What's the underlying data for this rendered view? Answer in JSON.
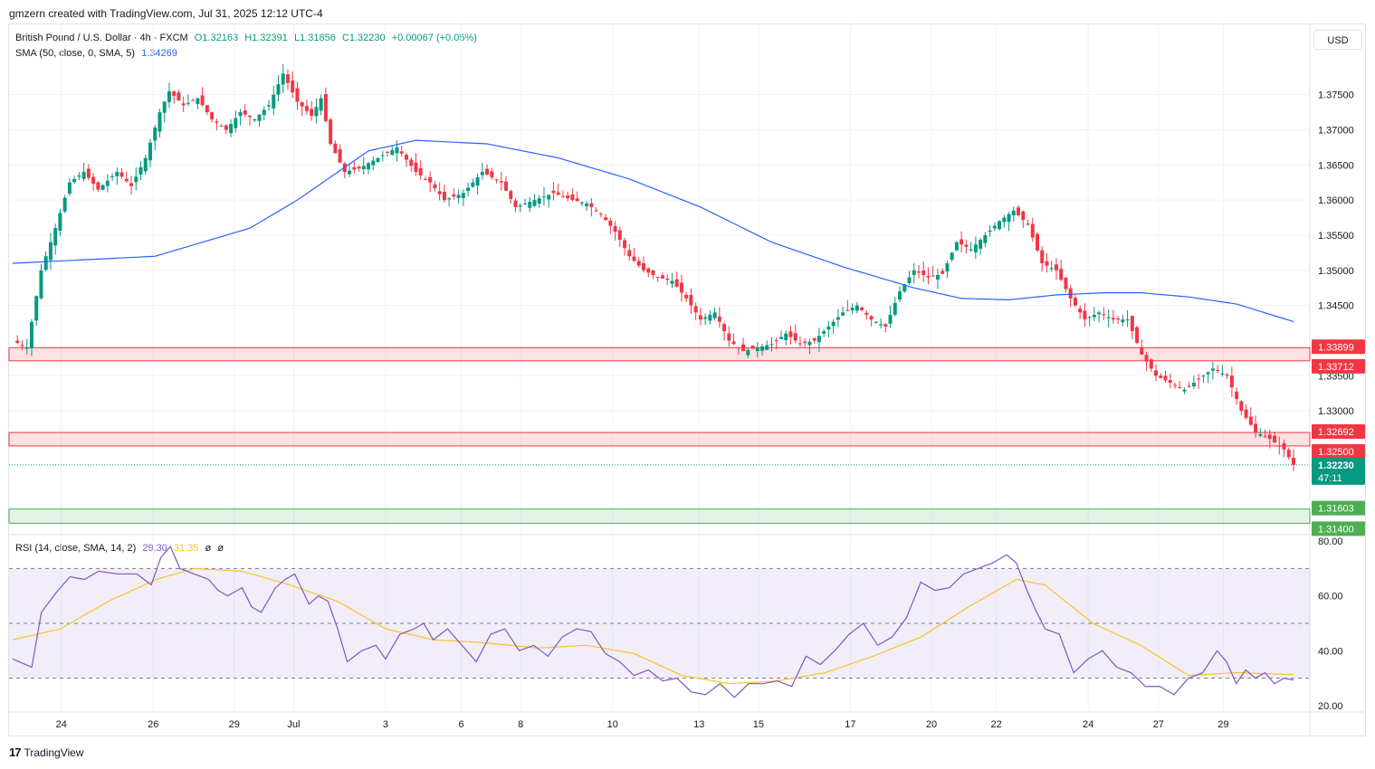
{
  "header": {
    "creator": "gmzern created with TradingView.com, Jul 31, 2025 12:12 UTC-4"
  },
  "footer": {
    "brand": "TradingView",
    "brand_icon": "tradingview-logo-icon"
  },
  "currency_button": "USD",
  "legend": {
    "symbol": "British Pound / U.S. Dollar · 4h · FXCM",
    "open": "O1.32163",
    "high": "H1.32391",
    "low": "L1.31856",
    "close": "C1.32230",
    "change": "+0.00067 (+0.05%)",
    "sma_label": "SMA (50, close, 0, SMA, 5)",
    "sma_value": "1.34269",
    "rsi_label": "RSI (14, close, SMA, 14, 2)",
    "rsi_value": "29.30",
    "rsi_ma_value": "31.35",
    "rsi_extra1": "ø",
    "rsi_extra2": "ø"
  },
  "colors": {
    "up": "#089981",
    "down": "#f23645",
    "sma": "#2962ff",
    "rsi": "#7e57c2",
    "rsi_ma": "#f7c22c",
    "zone_red": "#f23645",
    "zone_green": "#4caf50"
  },
  "chart_data": [
    {
      "type": "candlestick",
      "timeframe": "4h",
      "x_ticks": [
        "24",
        "26",
        "29",
        "Jul",
        "3",
        "6",
        "8",
        "10",
        "13",
        "15",
        "17",
        "20",
        "22",
        "24",
        "27",
        "29"
      ],
      "y_ticks": [
        "1.37500",
        "1.37000",
        "1.36500",
        "1.36000",
        "1.35500",
        "1.35000",
        "1.34500",
        "1.33500",
        "1.33000"
      ],
      "ylim": [
        1.3125,
        1.385
      ],
      "last_price": "1.32230",
      "countdown": "47:11",
      "zones": [
        {
          "color": "red",
          "top": "1.33899",
          "bottom": "1.33712"
        },
        {
          "color": "red",
          "top": "1.32692",
          "bottom": "1.32500"
        },
        {
          "color": "green",
          "top": "1.31603",
          "bottom": "1.31400"
        }
      ],
      "price_anchors": [
        [
          0,
          1.34
        ],
        [
          3,
          1.339
        ],
        [
          6,
          1.35
        ],
        [
          9,
          1.356
        ],
        [
          12,
          1.3625
        ],
        [
          15,
          1.364
        ],
        [
          18,
          1.3615
        ],
        [
          22,
          1.364
        ],
        [
          25,
          1.362
        ],
        [
          28,
          1.366
        ],
        [
          31,
          1.3725
        ],
        [
          33,
          1.3755
        ],
        [
          36,
          1.3735
        ],
        [
          39,
          1.3745
        ],
        [
          42,
          1.3715
        ],
        [
          45,
          1.37
        ],
        [
          48,
          1.3725
        ],
        [
          51,
          1.3715
        ],
        [
          54,
          1.3735
        ],
        [
          57,
          1.378
        ],
        [
          60,
          1.374
        ],
        [
          63,
          1.372
        ],
        [
          65,
          1.3745
        ],
        [
          67,
          1.368
        ],
        [
          70,
          1.364
        ],
        [
          73,
          1.3645
        ],
        [
          77,
          1.366
        ],
        [
          81,
          1.3675
        ],
        [
          85,
          1.364
        ],
        [
          88,
          1.3625
        ],
        [
          91,
          1.36
        ],
        [
          95,
          1.361
        ],
        [
          99,
          1.364
        ],
        [
          103,
          1.3625
        ],
        [
          106,
          1.359
        ],
        [
          110,
          1.36
        ],
        [
          114,
          1.361
        ],
        [
          118,
          1.36
        ],
        [
          121,
          1.3595
        ],
        [
          124,
          1.358
        ],
        [
          127,
          1.3555
        ],
        [
          130,
          1.352
        ],
        [
          133,
          1.35
        ],
        [
          136,
          1.349
        ],
        [
          139,
          1.3485
        ],
        [
          142,
          1.346
        ],
        [
          145,
          1.343
        ],
        [
          148,
          1.344
        ],
        [
          151,
          1.34
        ],
        [
          154,
          1.3385
        ],
        [
          157,
          1.339
        ],
        [
          160,
          1.3395
        ],
        [
          163,
          1.341
        ],
        [
          166,
          1.3395
        ],
        [
          169,
          1.34
        ],
        [
          172,
          1.342
        ],
        [
          175,
          1.344
        ],
        [
          178,
          1.345
        ],
        [
          181,
          1.343
        ],
        [
          184,
          1.342
        ],
        [
          187,
          1.347
        ],
        [
          190,
          1.35
        ],
        [
          193,
          1.349
        ],
        [
          196,
          1.3495
        ],
        [
          199,
          1.354
        ],
        [
          202,
          1.353
        ],
        [
          205,
          1.355
        ],
        [
          208,
          1.357
        ],
        [
          211,
          1.3585
        ],
        [
          214,
          1.3565
        ],
        [
          217,
          1.351
        ],
        [
          220,
          1.35
        ],
        [
          223,
          1.346
        ],
        [
          226,
          1.343
        ],
        [
          229,
          1.344
        ],
        [
          232,
          1.343
        ],
        [
          235,
          1.343
        ],
        [
          238,
          1.338
        ],
        [
          241,
          1.335
        ],
        [
          244,
          1.334
        ],
        [
          247,
          1.333
        ],
        [
          250,
          1.3345
        ],
        [
          253,
          1.336
        ],
        [
          256,
          1.335
        ],
        [
          259,
          1.33
        ],
        [
          262,
          1.327
        ],
        [
          265,
          1.326
        ],
        [
          268,
          1.3245
        ],
        [
          270,
          1.3223
        ]
      ],
      "sma_anchors": [
        [
          0,
          1.351
        ],
        [
          30,
          1.352
        ],
        [
          50,
          1.356
        ],
        [
          60,
          1.36
        ],
        [
          75,
          1.367
        ],
        [
          85,
          1.3685
        ],
        [
          100,
          1.368
        ],
        [
          115,
          1.366
        ],
        [
          130,
          1.363
        ],
        [
          145,
          1.359
        ],
        [
          160,
          1.354
        ],
        [
          175,
          1.3505
        ],
        [
          190,
          1.3475
        ],
        [
          200,
          1.346
        ],
        [
          210,
          1.3458
        ],
        [
          220,
          1.3465
        ],
        [
          230,
          1.3468
        ],
        [
          238,
          1.3468
        ],
        [
          248,
          1.3462
        ],
        [
          258,
          1.3452
        ],
        [
          270,
          1.3427
        ]
      ]
    },
    {
      "type": "line",
      "name": "RSI (14, close, SMA, 14, 2)",
      "y_ticks": [
        "80.00",
        "60.00",
        "40.00",
        "20.00"
      ],
      "ylim": [
        18,
        82
      ],
      "bands": {
        "upper": 70,
        "middle": 50,
        "lower": 30
      },
      "rsi_anchors": [
        [
          0,
          37
        ],
        [
          4,
          34
        ],
        [
          6,
          54
        ],
        [
          9,
          61
        ],
        [
          12,
          67
        ],
        [
          15,
          66
        ],
        [
          18,
          69
        ],
        [
          22,
          68
        ],
        [
          26,
          68
        ],
        [
          29,
          64
        ],
        [
          31,
          74
        ],
        [
          33,
          78
        ],
        [
          35,
          70
        ],
        [
          38,
          68
        ],
        [
          41,
          66
        ],
        [
          43,
          62
        ],
        [
          45,
          60
        ],
        [
          48,
          63
        ],
        [
          50,
          56
        ],
        [
          52,
          54
        ],
        [
          55,
          63
        ],
        [
          57,
          66
        ],
        [
          59,
          68
        ],
        [
          62,
          57
        ],
        [
          64,
          60
        ],
        [
          66,
          58
        ],
        [
          68,
          48
        ],
        [
          70,
          36
        ],
        [
          73,
          40
        ],
        [
          76,
          42
        ],
        [
          78,
          37
        ],
        [
          81,
          46
        ],
        [
          84,
          48
        ],
        [
          86,
          50
        ],
        [
          88,
          44
        ],
        [
          91,
          48
        ],
        [
          94,
          42
        ],
        [
          97,
          36
        ],
        [
          100,
          46
        ],
        [
          103,
          48
        ],
        [
          106,
          40
        ],
        [
          109,
          42
        ],
        [
          112,
          38
        ],
        [
          115,
          45
        ],
        [
          118,
          48
        ],
        [
          121,
          47
        ],
        [
          124,
          39
        ],
        [
          127,
          36
        ],
        [
          130,
          31
        ],
        [
          133,
          33
        ],
        [
          136,
          29
        ],
        [
          139,
          30
        ],
        [
          142,
          25
        ],
        [
          145,
          24
        ],
        [
          148,
          28
        ],
        [
          151,
          23
        ],
        [
          154,
          28
        ],
        [
          157,
          28
        ],
        [
          160,
          29
        ],
        [
          163,
          27
        ],
        [
          166,
          38
        ],
        [
          169,
          35
        ],
        [
          172,
          40
        ],
        [
          175,
          46
        ],
        [
          178,
          50
        ],
        [
          181,
          42
        ],
        [
          184,
          45
        ],
        [
          187,
          52
        ],
        [
          190,
          65
        ],
        [
          193,
          62
        ],
        [
          196,
          63
        ],
        [
          199,
          68
        ],
        [
          202,
          70
        ],
        [
          205,
          72
        ],
        [
          208,
          75
        ],
        [
          210,
          72
        ],
        [
          212,
          63
        ],
        [
          214,
          55
        ],
        [
          216,
          48
        ],
        [
          219,
          46
        ],
        [
          222,
          32
        ],
        [
          225,
          37
        ],
        [
          228,
          40
        ],
        [
          231,
          34
        ],
        [
          234,
          32
        ],
        [
          237,
          27
        ],
        [
          240,
          27
        ],
        [
          243,
          24
        ],
        [
          246,
          30
        ],
        [
          249,
          32
        ],
        [
          252,
          40
        ],
        [
          254,
          36
        ],
        [
          256,
          28
        ],
        [
          258,
          33
        ],
        [
          260,
          30
        ],
        [
          262,
          32
        ],
        [
          264,
          28
        ],
        [
          266,
          30
        ],
        [
          268,
          29.3
        ]
      ],
      "rsi_ma_anchors": [
        [
          0,
          44
        ],
        [
          10,
          48
        ],
        [
          20,
          58
        ],
        [
          30,
          66
        ],
        [
          38,
          70
        ],
        [
          48,
          69
        ],
        [
          58,
          64
        ],
        [
          68,
          58
        ],
        [
          78,
          48
        ],
        [
          88,
          44
        ],
        [
          98,
          43
        ],
        [
          110,
          41
        ],
        [
          120,
          42
        ],
        [
          130,
          39
        ],
        [
          140,
          31
        ],
        [
          150,
          28
        ],
        [
          160,
          29
        ],
        [
          170,
          32
        ],
        [
          180,
          38
        ],
        [
          190,
          45
        ],
        [
          200,
          56
        ],
        [
          210,
          66
        ],
        [
          216,
          64
        ],
        [
          226,
          50
        ],
        [
          236,
          42
        ],
        [
          246,
          31
        ],
        [
          256,
          32
        ],
        [
          268,
          31.35
        ]
      ]
    }
  ]
}
